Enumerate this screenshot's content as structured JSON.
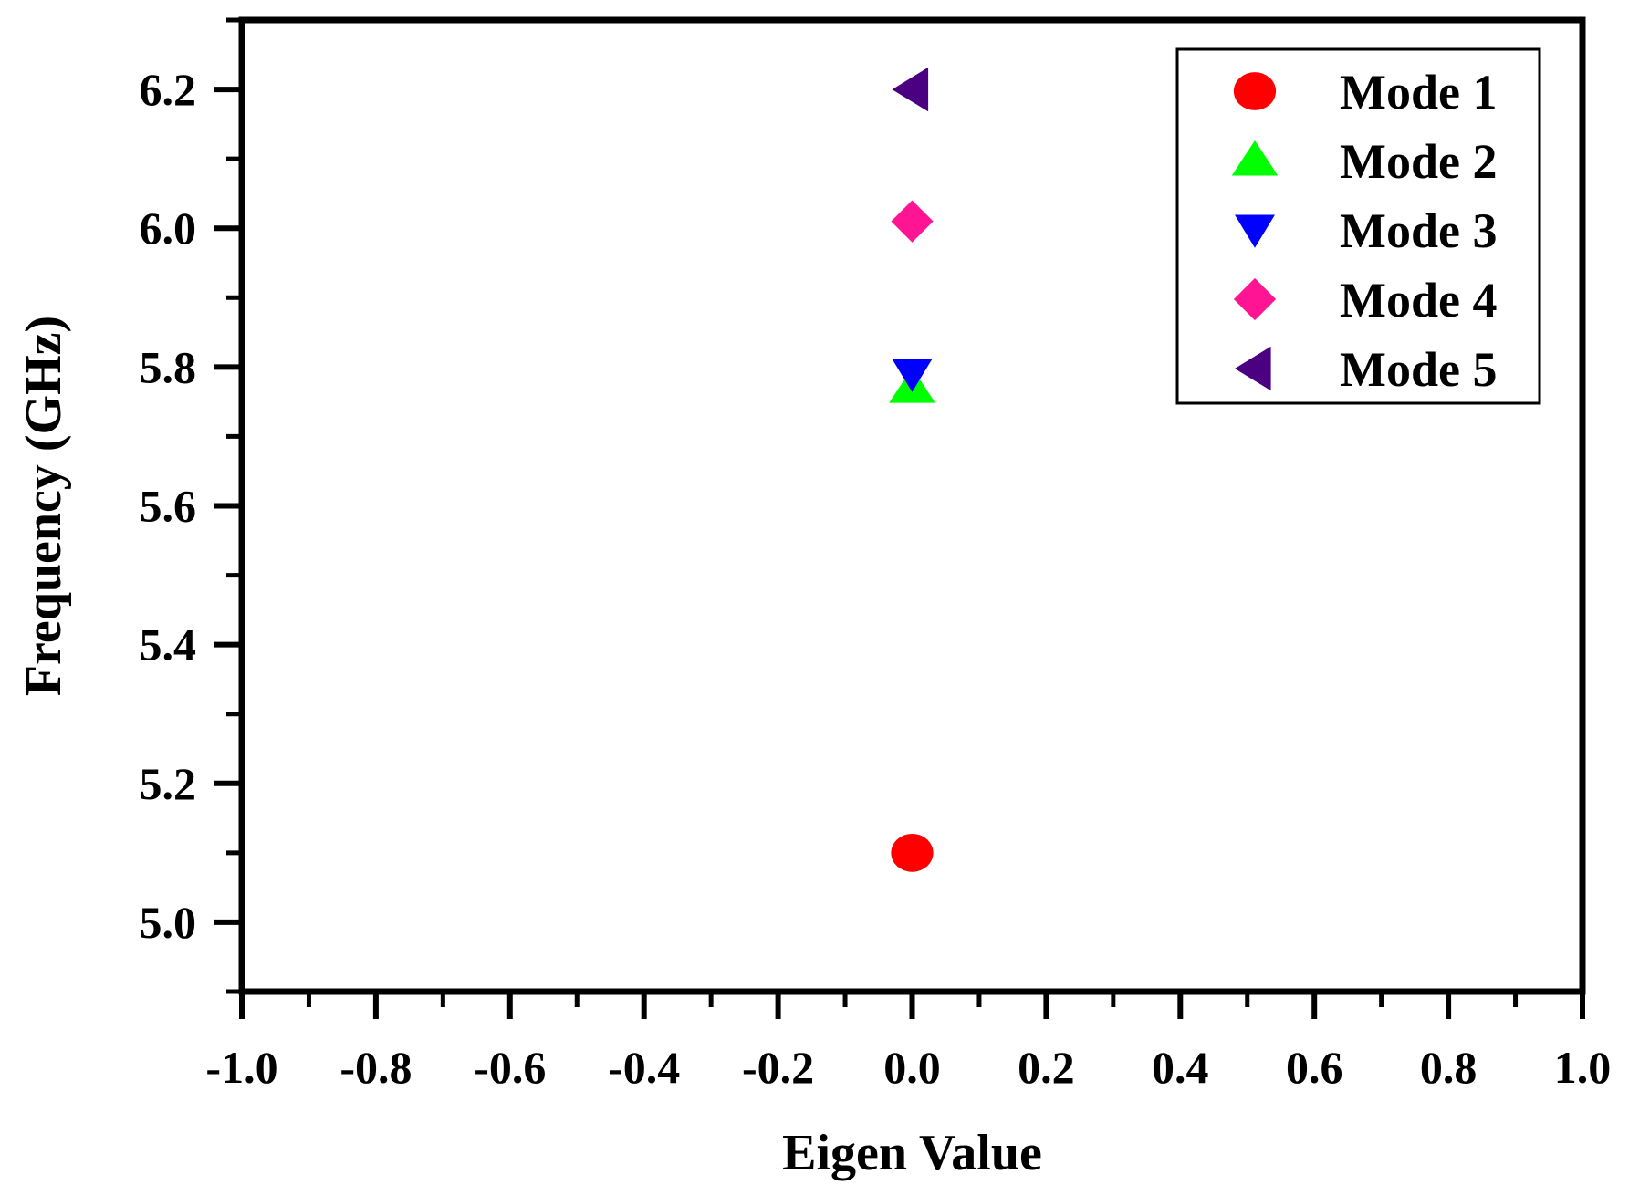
{
  "chart_data": {
    "type": "scatter",
    "title": "",
    "xlabel": "Eigen Value",
    "ylabel": "Frequency (GHz)",
    "xlim": [
      -1.0,
      1.0
    ],
    "ylim": [
      4.9,
      6.3
    ],
    "x_ticks": [
      -1.0,
      -0.8,
      -0.6,
      -0.4,
      -0.2,
      0.0,
      0.2,
      0.4,
      0.6,
      0.8,
      1.0
    ],
    "x_tick_labels": [
      "-1.0",
      "-0.8",
      "-0.6",
      "-0.4",
      "-0.2",
      "0.0",
      "0.2",
      "0.4",
      "0.6",
      "0.8",
      "1.0"
    ],
    "y_ticks": [
      5.0,
      5.2,
      5.4,
      5.6,
      5.8,
      6.0,
      6.2
    ],
    "y_tick_labels": [
      "5.0",
      "5.2",
      "5.4",
      "5.6",
      "5.8",
      "6.0",
      "6.2"
    ],
    "grid": false,
    "legend_position": "top-right",
    "series": [
      {
        "name": "Mode 1",
        "marker": "circle",
        "color": "#ff0000",
        "x": [
          0.0
        ],
        "y": [
          5.1
        ]
      },
      {
        "name": "Mode 2",
        "marker": "triangle-up",
        "color": "#00ff00",
        "x": [
          0.0
        ],
        "y": [
          5.77
        ]
      },
      {
        "name": "Mode 3",
        "marker": "triangle-down",
        "color": "#0000ff",
        "x": [
          0.0
        ],
        "y": [
          5.79
        ]
      },
      {
        "name": "Mode 4",
        "marker": "diamond",
        "color": "#ff1493",
        "x": [
          0.0
        ],
        "y": [
          6.01
        ]
      },
      {
        "name": "Mode 5",
        "marker": "triangle-left",
        "color": "#4b0082",
        "x": [
          0.0
        ],
        "y": [
          6.2
        ]
      }
    ]
  }
}
